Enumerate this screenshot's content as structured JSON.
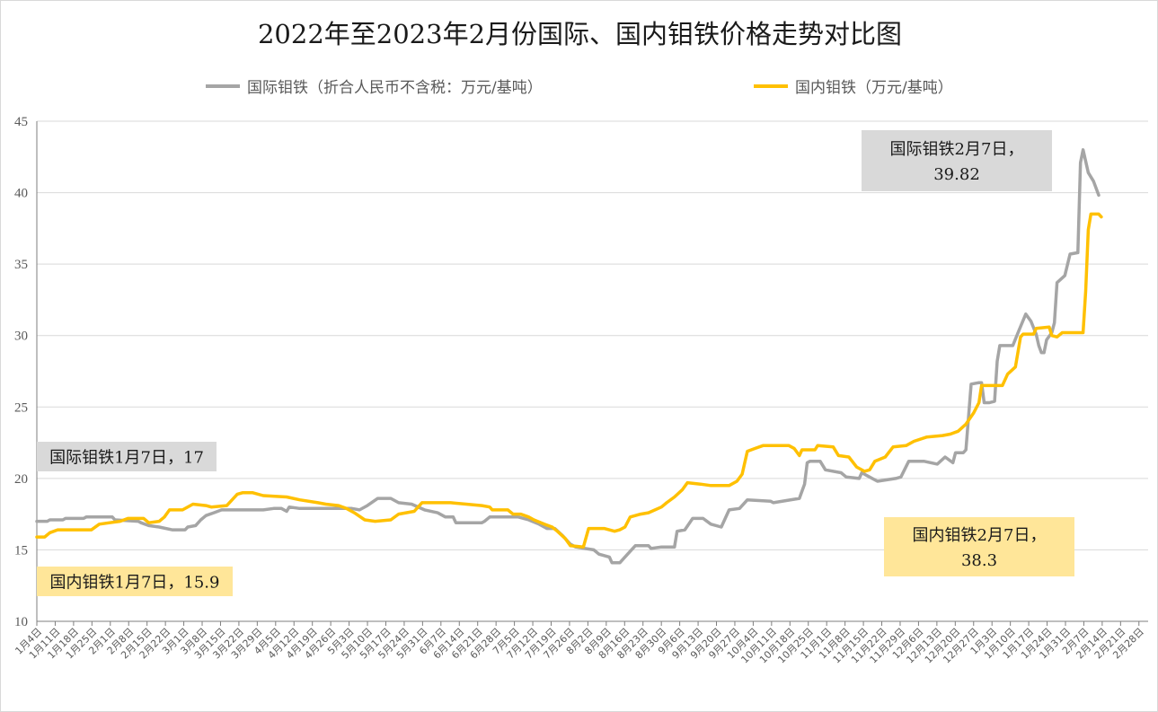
{
  "chart_data": {
    "type": "line",
    "title": "2022年至2023年2月份国际、国内钼铁价格走势对比图",
    "legend_placement": "top",
    "grid": "horizontal",
    "ylim": [
      10,
      45
    ],
    "yticks": [
      10,
      15,
      20,
      25,
      30,
      35,
      40,
      45
    ],
    "xlim": [
      "2022-01-04",
      "2023-03-07"
    ],
    "xticks": [
      "1月4日",
      "1月11日",
      "1月18日",
      "1月25日",
      "2月1日",
      "2月8日",
      "2月15日",
      "2月22日",
      "3月1日",
      "3月8日",
      "3月15日",
      "3月22日",
      "3月29日",
      "4月5日",
      "4月12日",
      "4月19日",
      "4月26日",
      "5月3日",
      "5月10日",
      "5月17日",
      "5月24日",
      "5月31日",
      "6月7日",
      "6月14日",
      "6月21日",
      "6月28日",
      "7月5日",
      "7月12日",
      "7月19日",
      "7月26日",
      "8月2日",
      "8月9日",
      "8月16日",
      "8月23日",
      "8月30日",
      "9月6日",
      "9月13日",
      "9月20日",
      "9月27日",
      "10月4日",
      "10月11日",
      "10月18日",
      "10月25日",
      "11月1日",
      "11月8日",
      "11月15日",
      "11月22日",
      "11月29日",
      "12月6日",
      "12月13日",
      "12月20日",
      "12月27日",
      "1月3日",
      "1月10日",
      "1月17日",
      "1月24日",
      "1月31日",
      "2月7日",
      "2月14日",
      "2月21日",
      "2月28日"
    ],
    "series": [
      {
        "name": "国际钼铁（折合人民币不含税：万元/基吨）",
        "color": "#a5a5a5",
        "points": [
          [
            "2022-01-04",
            17.0
          ],
          [
            "2022-01-08",
            17.0
          ],
          [
            "2022-01-09",
            17.1
          ],
          [
            "2022-01-14",
            17.1
          ],
          [
            "2022-01-15",
            17.2
          ],
          [
            "2022-01-22",
            17.2
          ],
          [
            "2022-01-23",
            17.3
          ],
          [
            "2022-02-02",
            17.3
          ],
          [
            "2022-02-03",
            17.1
          ],
          [
            "2022-02-12",
            17.0
          ],
          [
            "2022-02-13",
            16.9
          ],
          [
            "2022-02-16",
            16.7
          ],
          [
            "2022-02-20",
            16.6
          ],
          [
            "2022-02-25",
            16.4
          ],
          [
            "2022-03-02",
            16.4
          ],
          [
            "2022-03-03",
            16.6
          ],
          [
            "2022-03-06",
            16.7
          ],
          [
            "2022-03-08",
            17.1
          ],
          [
            "2022-03-10",
            17.4
          ],
          [
            "2022-03-13",
            17.6
          ],
          [
            "2022-03-16",
            17.8
          ],
          [
            "2022-04-01",
            17.8
          ],
          [
            "2022-04-05",
            17.9
          ],
          [
            "2022-04-08",
            17.9
          ],
          [
            "2022-04-10",
            17.7
          ],
          [
            "2022-04-11",
            18.0
          ],
          [
            "2022-04-15",
            17.9
          ],
          [
            "2022-04-20",
            17.9
          ],
          [
            "2022-05-01",
            17.9
          ],
          [
            "2022-05-05",
            17.9
          ],
          [
            "2022-05-08",
            17.8
          ],
          [
            "2022-05-11",
            18.1
          ],
          [
            "2022-05-15",
            18.6
          ],
          [
            "2022-05-20",
            18.6
          ],
          [
            "2022-05-23",
            18.3
          ],
          [
            "2022-05-28",
            18.2
          ],
          [
            "2022-06-02",
            17.8
          ],
          [
            "2022-06-07",
            17.6
          ],
          [
            "2022-06-10",
            17.3
          ],
          [
            "2022-06-13",
            17.3
          ],
          [
            "2022-06-14",
            16.9
          ],
          [
            "2022-06-24",
            16.9
          ],
          [
            "2022-06-25",
            17.0
          ],
          [
            "2022-06-27",
            17.3
          ],
          [
            "2022-07-08",
            17.3
          ],
          [
            "2022-07-12",
            17.1
          ],
          [
            "2022-07-16",
            16.8
          ],
          [
            "2022-07-19",
            16.5
          ],
          [
            "2022-07-22",
            16.5
          ],
          [
            "2022-07-25",
            16.0
          ],
          [
            "2022-07-28",
            15.4
          ],
          [
            "2022-07-30",
            15.2
          ],
          [
            "2022-08-06",
            15.0
          ],
          [
            "2022-08-08",
            14.7
          ],
          [
            "2022-08-12",
            14.5
          ],
          [
            "2022-08-13",
            14.1
          ],
          [
            "2022-08-16",
            14.1
          ],
          [
            "2022-08-19",
            14.7
          ],
          [
            "2022-08-22",
            15.3
          ],
          [
            "2022-08-27",
            15.3
          ],
          [
            "2022-08-28",
            15.1
          ],
          [
            "2022-09-01",
            15.2
          ],
          [
            "2022-09-06",
            15.2
          ],
          [
            "2022-09-07",
            16.3
          ],
          [
            "2022-09-10",
            16.4
          ],
          [
            "2022-09-13",
            17.2
          ],
          [
            "2022-09-17",
            17.2
          ],
          [
            "2022-09-20",
            16.8
          ],
          [
            "2022-09-24",
            16.6
          ],
          [
            "2022-09-27",
            17.8
          ],
          [
            "2022-10-01",
            17.9
          ],
          [
            "2022-10-04",
            18.5
          ],
          [
            "2022-10-13",
            18.4
          ],
          [
            "2022-10-14",
            18.3
          ],
          [
            "2022-10-24",
            18.6
          ],
          [
            "2022-10-26",
            19.6
          ],
          [
            "2022-10-27",
            21.1
          ],
          [
            "2022-10-28",
            21.2
          ],
          [
            "2022-11-01",
            21.2
          ],
          [
            "2022-11-03",
            20.6
          ],
          [
            "2022-11-09",
            20.4
          ],
          [
            "2022-11-11",
            20.1
          ],
          [
            "2022-11-16",
            20.0
          ],
          [
            "2022-11-17",
            20.4
          ],
          [
            "2022-11-20",
            20.1
          ],
          [
            "2022-11-23",
            19.8
          ],
          [
            "2022-11-30",
            20.0
          ],
          [
            "2022-12-02",
            20.1
          ],
          [
            "2022-12-05",
            21.2
          ],
          [
            "2022-12-11",
            21.2
          ],
          [
            "2022-12-16",
            21.0
          ],
          [
            "2022-12-19",
            21.5
          ],
          [
            "2022-12-22",
            21.1
          ],
          [
            "2022-12-23",
            21.8
          ],
          [
            "2022-12-26",
            21.8
          ],
          [
            "2022-12-27",
            22.0
          ],
          [
            "2022-12-29",
            26.6
          ],
          [
            "2023-01-01",
            26.7
          ],
          [
            "2023-01-02",
            26.7
          ],
          [
            "2023-01-03",
            25.3
          ],
          [
            "2023-01-05",
            25.3
          ],
          [
            "2023-01-07",
            25.4
          ],
          [
            "2023-01-08",
            28.2
          ],
          [
            "2023-01-09",
            29.3
          ],
          [
            "2023-01-14",
            29.3
          ],
          [
            "2023-01-16",
            30.2
          ],
          [
            "2023-01-19",
            31.5
          ],
          [
            "2023-01-21",
            31.0
          ],
          [
            "2023-01-23",
            30.1
          ],
          [
            "2023-01-24",
            29.3
          ],
          [
            "2023-01-25",
            28.8
          ],
          [
            "2023-01-26",
            28.8
          ],
          [
            "2023-01-27",
            29.7
          ],
          [
            "2023-01-29",
            30.2
          ],
          [
            "2023-01-30",
            30.9
          ],
          [
            "2023-01-31",
            33.7
          ],
          [
            "2023-02-03",
            34.2
          ],
          [
            "2023-02-05",
            35.7
          ],
          [
            "2023-02-08",
            35.8
          ],
          [
            "2023-02-09",
            42.1
          ],
          [
            "2023-02-10",
            43.0
          ],
          [
            "2023-02-12",
            41.4
          ],
          [
            "2023-02-14",
            40.8
          ],
          [
            "2023-02-16",
            39.82
          ]
        ]
      },
      {
        "name": "国内钼铁（万元/基吨）",
        "color": "#ffc000",
        "points": [
          [
            "2022-01-04",
            15.9
          ],
          [
            "2022-01-07",
            15.9
          ],
          [
            "2022-01-09",
            16.2
          ],
          [
            "2022-01-12",
            16.4
          ],
          [
            "2022-01-25",
            16.4
          ],
          [
            "2022-01-28",
            16.8
          ],
          [
            "2022-02-01",
            16.9
          ],
          [
            "2022-02-05",
            17.0
          ],
          [
            "2022-02-08",
            17.2
          ],
          [
            "2022-02-14",
            17.2
          ],
          [
            "2022-02-16",
            16.9
          ],
          [
            "2022-02-20",
            17.0
          ],
          [
            "2022-02-22",
            17.3
          ],
          [
            "2022-02-24",
            17.8
          ],
          [
            "2022-03-01",
            17.8
          ],
          [
            "2022-03-05",
            18.2
          ],
          [
            "2022-03-10",
            18.1
          ],
          [
            "2022-03-12",
            18.0
          ],
          [
            "2022-03-18",
            18.1
          ],
          [
            "2022-03-22",
            18.9
          ],
          [
            "2022-03-24",
            19.0
          ],
          [
            "2022-03-28",
            19.0
          ],
          [
            "2022-04-01",
            18.8
          ],
          [
            "2022-04-10",
            18.7
          ],
          [
            "2022-04-15",
            18.5
          ],
          [
            "2022-04-22",
            18.3
          ],
          [
            "2022-04-25",
            18.2
          ],
          [
            "2022-04-30",
            18.1
          ],
          [
            "2022-05-03",
            17.9
          ],
          [
            "2022-05-06",
            17.6
          ],
          [
            "2022-05-10",
            17.1
          ],
          [
            "2022-05-14",
            17.0
          ],
          [
            "2022-05-20",
            17.1
          ],
          [
            "2022-05-23",
            17.5
          ],
          [
            "2022-05-29",
            17.7
          ],
          [
            "2022-06-01",
            18.3
          ],
          [
            "2022-06-12",
            18.3
          ],
          [
            "2022-06-18",
            18.2
          ],
          [
            "2022-06-24",
            18.1
          ],
          [
            "2022-06-27",
            18.0
          ],
          [
            "2022-06-28",
            17.8
          ],
          [
            "2022-07-04",
            17.8
          ],
          [
            "2022-07-06",
            17.5
          ],
          [
            "2022-07-09",
            17.5
          ],
          [
            "2022-07-12",
            17.3
          ],
          [
            "2022-07-14",
            17.1
          ],
          [
            "2022-07-18",
            16.8
          ],
          [
            "2022-07-21",
            16.6
          ],
          [
            "2022-07-23",
            16.3
          ],
          [
            "2022-07-26",
            15.8
          ],
          [
            "2022-07-28",
            15.3
          ],
          [
            "2022-08-02",
            15.2
          ],
          [
            "2022-08-04",
            16.5
          ],
          [
            "2022-08-10",
            16.5
          ],
          [
            "2022-08-14",
            16.3
          ],
          [
            "2022-08-16",
            16.4
          ],
          [
            "2022-08-18",
            16.6
          ],
          [
            "2022-08-20",
            17.3
          ],
          [
            "2022-08-24",
            17.5
          ],
          [
            "2022-08-27",
            17.6
          ],
          [
            "2022-09-01",
            18.0
          ],
          [
            "2022-09-03",
            18.3
          ],
          [
            "2022-09-06",
            18.7
          ],
          [
            "2022-09-09",
            19.2
          ],
          [
            "2022-09-11",
            19.7
          ],
          [
            "2022-09-16",
            19.6
          ],
          [
            "2022-09-20",
            19.5
          ],
          [
            "2022-09-27",
            19.5
          ],
          [
            "2022-09-30",
            19.8
          ],
          [
            "2022-10-02",
            20.3
          ],
          [
            "2022-10-04",
            21.9
          ],
          [
            "2022-10-07",
            22.1
          ],
          [
            "2022-10-10",
            22.3
          ],
          [
            "2022-10-20",
            22.3
          ],
          [
            "2022-10-22",
            22.1
          ],
          [
            "2022-10-24",
            21.6
          ],
          [
            "2022-10-25",
            22.0
          ],
          [
            "2022-10-30",
            22.0
          ],
          [
            "2022-10-31",
            22.3
          ],
          [
            "2022-11-06",
            22.2
          ],
          [
            "2022-11-08",
            21.6
          ],
          [
            "2022-11-12",
            21.5
          ],
          [
            "2022-11-15",
            20.8
          ],
          [
            "2022-11-18",
            20.5
          ],
          [
            "2022-11-20",
            20.6
          ],
          [
            "2022-11-22",
            21.2
          ],
          [
            "2022-11-26",
            21.5
          ],
          [
            "2022-11-29",
            22.2
          ],
          [
            "2022-12-04",
            22.3
          ],
          [
            "2022-12-07",
            22.6
          ],
          [
            "2022-12-12",
            22.9
          ],
          [
            "2022-12-18",
            23.0
          ],
          [
            "2022-12-21",
            23.1
          ],
          [
            "2022-12-24",
            23.3
          ],
          [
            "2022-12-27",
            23.8
          ],
          [
            "2022-12-30",
            24.6
          ],
          [
            "2023-01-01",
            25.3
          ],
          [
            "2023-01-02",
            26.5
          ],
          [
            "2023-01-10",
            26.5
          ],
          [
            "2023-01-12",
            27.3
          ],
          [
            "2023-01-15",
            27.8
          ],
          [
            "2023-01-17",
            29.9
          ],
          [
            "2023-01-18",
            30.1
          ],
          [
            "2023-01-22",
            30.1
          ],
          [
            "2023-01-23",
            30.5
          ],
          [
            "2023-01-28",
            30.6
          ],
          [
            "2023-01-29",
            30.0
          ],
          [
            "2023-01-31",
            29.9
          ],
          [
            "2023-02-02",
            30.2
          ],
          [
            "2023-02-10",
            30.2
          ],
          [
            "2023-02-11",
            33.1
          ],
          [
            "2023-02-12",
            37.4
          ],
          [
            "2023-02-13",
            38.5
          ],
          [
            "2023-02-16",
            38.5
          ],
          [
            "2023-02-17",
            38.3
          ]
        ]
      }
    ],
    "annotations": [
      {
        "series": "国际钼铁",
        "lines": [
          "国际钼铁2月7日，",
          "39.82"
        ],
        "bg": "#d9d9d9"
      },
      {
        "series": "国内钼铁",
        "lines": [
          "国内钼铁2月7日，",
          "38.3"
        ],
        "bg": "#ffe699"
      },
      {
        "series": "国际钼铁",
        "lines": [
          "国际钼铁1月7日，17"
        ],
        "bg": "#d9d9d9"
      },
      {
        "series": "国内钼铁",
        "lines": [
          "国内钼铁1月7日，15.9"
        ],
        "bg": "#ffe699"
      }
    ]
  }
}
